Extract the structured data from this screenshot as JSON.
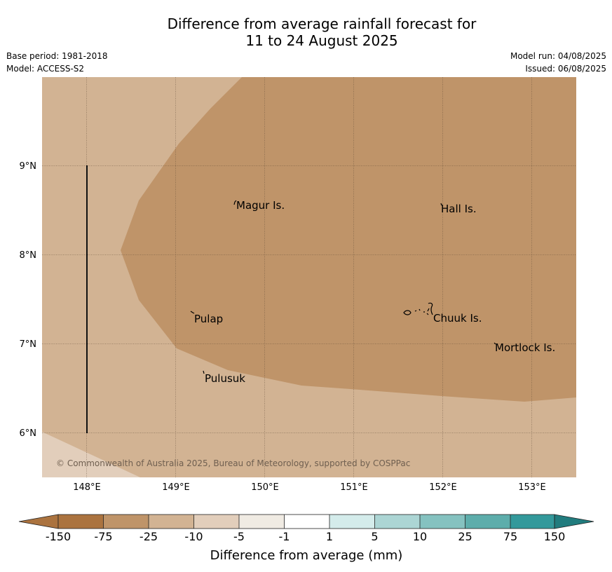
{
  "header": {
    "title_line1": "Difference from average rainfall forecast for",
    "title_line2": "11 to 24 August 2025",
    "base_period": "Base period: 1981-2018",
    "model": "Model: ACCESS-S2",
    "model_run": "Model run: 04/08/2025",
    "issued": "Issued: 06/08/2025"
  },
  "map": {
    "x_ticks": [
      "148°E",
      "149°E",
      "150°E",
      "151°E",
      "152°E",
      "153°E"
    ],
    "y_ticks": [
      "9°N",
      "8°N",
      "7°N",
      "6°N"
    ],
    "places": [
      {
        "name": "Magur Is."
      },
      {
        "name": "Hall Is."
      },
      {
        "name": "Pulap"
      },
      {
        "name": "Chuuk Is."
      },
      {
        "name": "Mortlock Is."
      },
      {
        "name": "Pulusuk"
      }
    ],
    "copyright": "© Commonwealth of Australia 2025, Bureau of Meteorology, supported by COSPPac",
    "colors": {
      "cat_minus75": "#bf9469",
      "cat_minus25": "#d2b393",
      "cat_minus10": "#e2cebb"
    }
  },
  "colorbar": {
    "ticks": [
      "-150",
      "-75",
      "-25",
      "-10",
      "-5",
      "-1",
      "1",
      "5",
      "10",
      "25",
      "75",
      "150"
    ],
    "colors": [
      "#ab733f",
      "#bf9469",
      "#d2b393",
      "#e2cebb",
      "#f0ebe3",
      "#ffffff",
      "#d4eceb",
      "#acd5d4",
      "#85c2c0",
      "#5dadab",
      "#33999b",
      "#217c7e"
    ],
    "label": "Difference from average (mm)"
  }
}
